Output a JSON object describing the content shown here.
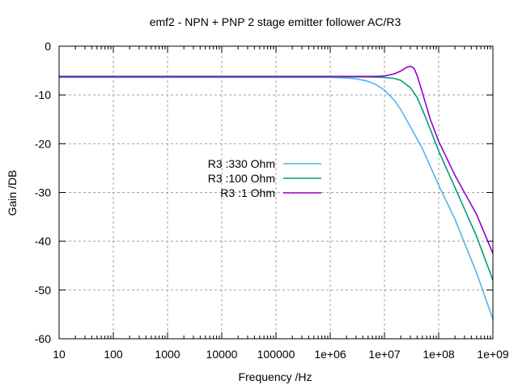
{
  "chart_data": {
    "type": "line",
    "title": "emf2 - NPN + PNP 2 stage emitter follower AC/R3",
    "xlabel": "Frequency /Hz",
    "ylabel": "Gain /DB",
    "xscale": "log",
    "xlim": [
      10,
      1000000000
    ],
    "ylim": [
      -60,
      0
    ],
    "xticks": [
      10,
      100,
      1000,
      10000,
      100000,
      1000000,
      10000000,
      100000000,
      1000000000
    ],
    "xtick_labels": [
      "10",
      "100",
      "1000",
      "10000",
      "100000",
      "1e+06",
      "1e+07",
      "1e+08",
      "1e+09"
    ],
    "yticks": [
      0,
      -10,
      -20,
      -30,
      -40,
      -50,
      -60
    ],
    "ytick_labels": [
      "0",
      "-10",
      "-20",
      "-30",
      "-40",
      "-50",
      "-60"
    ],
    "grid": true,
    "legend_position": "center",
    "series": [
      {
        "name": "R3 :330 Ohm",
        "color": "#56b4e9",
        "x": [
          10,
          100000,
          1000000,
          2000000,
          3000000,
          5000000,
          7000000,
          10000000,
          15000000,
          20000000,
          30000000,
          50000000,
          100000000,
          200000000,
          500000000,
          1000000000
        ],
        "y": [
          -6.4,
          -6.4,
          -6.4,
          -6.5,
          -6.7,
          -7.2,
          -7.9,
          -9.0,
          -11.0,
          -13.0,
          -16.5,
          -21.0,
          -28.5,
          -35.5,
          -46.5,
          -56.0
        ]
      },
      {
        "name": "R3 :100 Ohm",
        "color": "#009e73",
        "x": [
          10,
          1000000,
          5000000,
          10000000,
          15000000,
          20000000,
          30000000,
          40000000,
          50000000,
          70000000,
          100000000,
          200000000,
          500000000,
          1000000000
        ],
        "y": [
          -6.3,
          -6.3,
          -6.3,
          -6.4,
          -6.6,
          -7.0,
          -8.5,
          -10.5,
          -13.0,
          -17.0,
          -21.5,
          -29.0,
          -39.0,
          -48.0
        ]
      },
      {
        "name": "R3 :1 Ohm",
        "color": "#9400d3",
        "x": [
          10,
          1000000,
          7000000,
          10000000,
          15000000,
          20000000,
          25000000,
          30000000,
          35000000,
          40000000,
          50000000,
          70000000,
          100000000,
          200000000,
          500000000,
          1000000000
        ],
        "y": [
          -6.2,
          -6.2,
          -6.2,
          -6.1,
          -5.7,
          -5.1,
          -4.4,
          -4.1,
          -4.5,
          -6.0,
          -9.5,
          -15.0,
          -19.5,
          -26.5,
          -34.5,
          -42.5
        ]
      }
    ]
  }
}
